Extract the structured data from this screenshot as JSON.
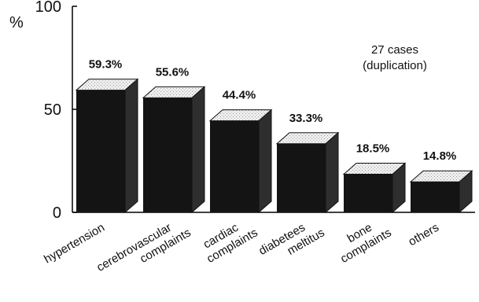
{
  "chart_data": {
    "type": "bar",
    "title": "",
    "xlabel": "",
    "ylabel": "%",
    "ylim": [
      0,
      100
    ],
    "yticks": [
      0,
      50,
      100
    ],
    "grid": false,
    "annotation": [
      "27 cases",
      "(duplication)"
    ],
    "categories": [
      [
        "hypertension"
      ],
      [
        "cerebrovascular",
        "complaints"
      ],
      [
        "cardiac",
        "complaints"
      ],
      [
        "diabetees",
        "meltitus"
      ],
      [
        "bone",
        "complaints"
      ],
      [
        "others"
      ]
    ],
    "values": [
      59.3,
      55.6,
      44.4,
      33.3,
      18.5,
      14.8
    ],
    "value_labels": [
      "59.3%",
      "55.6%",
      "44.4%",
      "33.3%",
      "18.5%",
      "14.8%"
    ],
    "colors": {
      "bar_front": "#141414",
      "bar_top": "#eeeeee",
      "bar_side": "#2e2e2e",
      "axis": "#000000"
    }
  }
}
